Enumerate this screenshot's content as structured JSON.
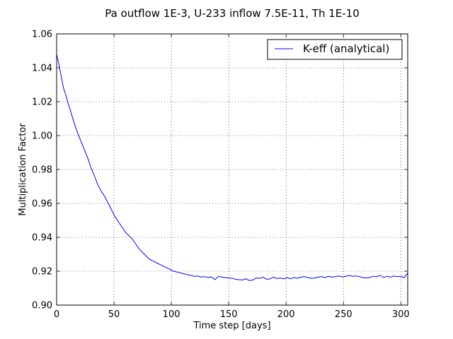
{
  "chart_data": {
    "type": "line",
    "title": "Pa outflow 1E-3, U-233 inflow 7.5E-11, Th 1E-10",
    "xlabel": "Time step [days]",
    "ylabel": "Multiplication Factor",
    "xlim": [
      0,
      306
    ],
    "ylim": [
      0.9,
      1.06
    ],
    "xticks": [
      "0",
      "50",
      "100",
      "150",
      "200",
      "250",
      "300"
    ],
    "yticks": [
      "0.90",
      "0.92",
      "0.94",
      "0.96",
      "0.98",
      "1.00",
      "1.02",
      "1.04",
      "1.06"
    ],
    "grid": true,
    "legend_position": "top-right",
    "series": [
      {
        "name": "K-eff (analytical)",
        "color": "#0000ff",
        "x": [
          0,
          2,
          4,
          6,
          8,
          10,
          12,
          15,
          18,
          21,
          24,
          27,
          30,
          33,
          36,
          39,
          42,
          45,
          48,
          51,
          54,
          57,
          60,
          63,
          66,
          69,
          72,
          75,
          78,
          81,
          84,
          87,
          90,
          93,
          96,
          99,
          102,
          105,
          108,
          111,
          114,
          117,
          120,
          123,
          126,
          129,
          132,
          135,
          138,
          141,
          144,
          147,
          150,
          153,
          156,
          159,
          162,
          165,
          168,
          171,
          174,
          177,
          180,
          183,
          186,
          189,
          192,
          195,
          198,
          201,
          204,
          207,
          210,
          213,
          216,
          219,
          222,
          225,
          228,
          231,
          234,
          237,
          240,
          243,
          246,
          249,
          252,
          255,
          258,
          261,
          264,
          267,
          270,
          273,
          276,
          279,
          282,
          285,
          288,
          291,
          294,
          297,
          300,
          303,
          306
        ],
        "y": [
          1.048,
          1.042,
          1.035,
          1.028,
          1.024,
          1.019,
          1.015,
          1.008,
          1.002,
          0.997,
          0.992,
          0.987,
          0.981,
          0.976,
          0.971,
          0.967,
          0.964,
          0.96,
          0.956,
          0.952,
          0.949,
          0.946,
          0.943,
          0.941,
          0.939,
          0.936,
          0.933,
          0.931,
          0.929,
          0.927,
          0.926,
          0.925,
          0.924,
          0.923,
          0.922,
          0.921,
          0.92,
          0.9195,
          0.919,
          0.9185,
          0.918,
          0.9175,
          0.917,
          0.9172,
          0.9165,
          0.9168,
          0.9163,
          0.9166,
          0.915,
          0.917,
          0.9165,
          0.9162,
          0.916,
          0.9158,
          0.9152,
          0.915,
          0.9148,
          0.9155,
          0.9145,
          0.9148,
          0.916,
          0.9158,
          0.9165,
          0.9152,
          0.9155,
          0.9165,
          0.9157,
          0.916,
          0.9155,
          0.9162,
          0.9156,
          0.9163,
          0.9158,
          0.9165,
          0.9168,
          0.9162,
          0.9158,
          0.916,
          0.9165,
          0.9168,
          0.9162,
          0.917,
          0.9165,
          0.9168,
          0.9172,
          0.9166,
          0.917,
          0.9175,
          0.917,
          0.9172,
          0.9168,
          0.9162,
          0.916,
          0.9163,
          0.917,
          0.9168,
          0.9176,
          0.9162,
          0.917,
          0.9165,
          0.9172,
          0.9168,
          0.917,
          0.9162,
          0.919
        ]
      }
    ]
  }
}
